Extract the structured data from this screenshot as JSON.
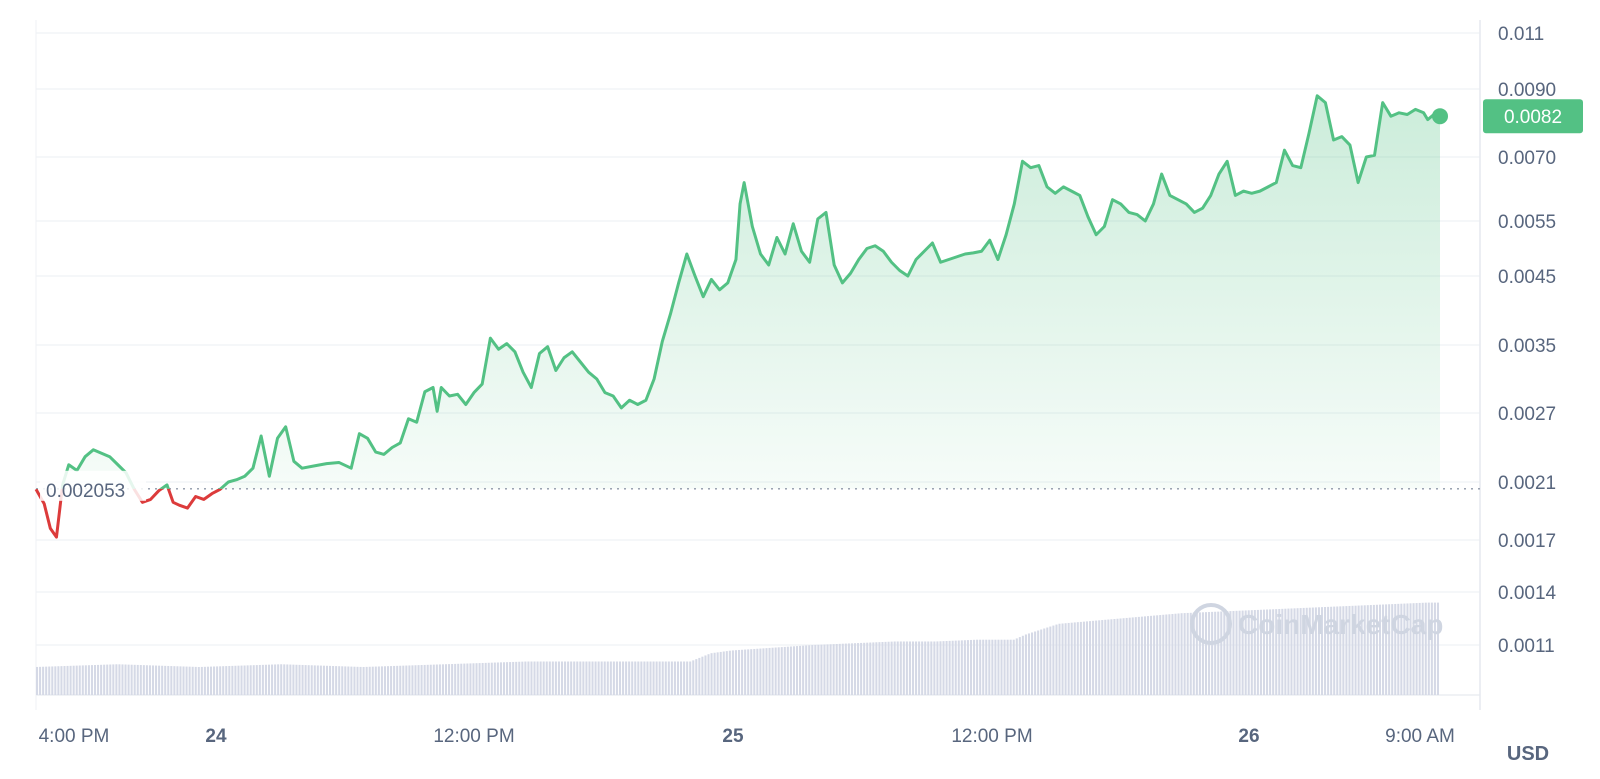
{
  "chart_data": {
    "type": "line",
    "currency_unit": "USD",
    "watermark": "CoinMarketCap",
    "reference_value": 0.002053,
    "reference_label": "0.002053",
    "current_value": 0.0082,
    "current_label": "0.0082",
    "y_ticks": [
      "0.011",
      "0.0090",
      "0.0070",
      "0.0055",
      "0.0045",
      "0.0035",
      "0.0027",
      "0.0021",
      "0.0017",
      "0.0014",
      "0.0011"
    ],
    "x_ticks": [
      {
        "label": "4:00 PM",
        "bold": false
      },
      {
        "label": "24",
        "bold": true
      },
      {
        "label": "12:00 PM",
        "bold": false
      },
      {
        "label": "25",
        "bold": true
      },
      {
        "label": "12:00 PM",
        "bold": false
      },
      {
        "label": "26",
        "bold": true
      },
      {
        "label": "9:00 AM",
        "bold": false
      }
    ],
    "colors": {
      "up": "#53c184",
      "down": "#dc3b3b",
      "volume": "#d5d9e6",
      "grid": "#eff2f5"
    },
    "price_series": [
      [
        0.0,
        0.00205
      ],
      [
        0.2,
        0.00195
      ],
      [
        0.35,
        0.00178
      ],
      [
        0.5,
        0.00172
      ],
      [
        0.65,
        0.00208
      ],
      [
        0.8,
        0.00225
      ],
      [
        1.0,
        0.0022
      ],
      [
        1.2,
        0.00232
      ],
      [
        1.4,
        0.00238
      ],
      [
        1.6,
        0.00235
      ],
      [
        1.8,
        0.00232
      ],
      [
        2.0,
        0.00225
      ],
      [
        2.2,
        0.00218
      ],
      [
        2.4,
        0.00205
      ],
      [
        2.6,
        0.00196
      ],
      [
        2.8,
        0.00198
      ],
      [
        3.0,
        0.00204
      ],
      [
        3.2,
        0.00208
      ],
      [
        3.35,
        0.00196
      ],
      [
        3.5,
        0.00194
      ],
      [
        3.7,
        0.00192
      ],
      [
        3.9,
        0.002
      ],
      [
        4.1,
        0.00198
      ],
      [
        4.3,
        0.00202
      ],
      [
        4.5,
        0.00205
      ],
      [
        4.7,
        0.0021
      ],
      [
        4.9,
        0.00212
      ],
      [
        5.1,
        0.00215
      ],
      [
        5.3,
        0.00222
      ],
      [
        5.5,
        0.0025
      ],
      [
        5.7,
        0.00215
      ],
      [
        5.9,
        0.00248
      ],
      [
        6.1,
        0.00258
      ],
      [
        6.3,
        0.00228
      ],
      [
        6.5,
        0.00222
      ],
      [
        6.8,
        0.00224
      ],
      [
        7.1,
        0.00226
      ],
      [
        7.4,
        0.00227
      ],
      [
        7.7,
        0.00222
      ],
      [
        7.9,
        0.00252
      ],
      [
        8.1,
        0.00248
      ],
      [
        8.3,
        0.00236
      ],
      [
        8.5,
        0.00234
      ],
      [
        8.7,
        0.0024
      ],
      [
        8.9,
        0.00244
      ],
      [
        9.1,
        0.00265
      ],
      [
        9.3,
        0.00262
      ],
      [
        9.5,
        0.00295
      ],
      [
        9.7,
        0.003
      ],
      [
        9.8,
        0.00272
      ],
      [
        9.9,
        0.003
      ],
      [
        10.1,
        0.0029
      ],
      [
        10.3,
        0.00292
      ],
      [
        10.5,
        0.0028
      ],
      [
        10.7,
        0.00294
      ],
      [
        10.9,
        0.00304
      ],
      [
        11.1,
        0.0036
      ],
      [
        11.3,
        0.00345
      ],
      [
        11.5,
        0.00352
      ],
      [
        11.7,
        0.00342
      ],
      [
        11.9,
        0.00318
      ],
      [
        12.1,
        0.003
      ],
      [
        12.3,
        0.0034
      ],
      [
        12.5,
        0.00348
      ],
      [
        12.7,
        0.0032
      ],
      [
        12.9,
        0.00335
      ],
      [
        13.1,
        0.00342
      ],
      [
        13.3,
        0.0033
      ],
      [
        13.5,
        0.00318
      ],
      [
        13.7,
        0.0031
      ],
      [
        13.9,
        0.00294
      ],
      [
        14.1,
        0.0029
      ],
      [
        14.3,
        0.00276
      ],
      [
        14.5,
        0.00285
      ],
      [
        14.7,
        0.0028
      ],
      [
        14.9,
        0.00285
      ],
      [
        15.1,
        0.0031
      ],
      [
        15.3,
        0.00355
      ],
      [
        15.5,
        0.00395
      ],
      [
        15.7,
        0.0044
      ],
      [
        15.9,
        0.0049
      ],
      [
        16.1,
        0.0045
      ],
      [
        16.3,
        0.0042
      ],
      [
        16.5,
        0.00445
      ],
      [
        16.7,
        0.0043
      ],
      [
        16.9,
        0.0044
      ],
      [
        17.1,
        0.0048
      ],
      [
        17.2,
        0.0059
      ],
      [
        17.3,
        0.0064
      ],
      [
        17.5,
        0.0054
      ],
      [
        17.7,
        0.0049
      ],
      [
        17.9,
        0.0047
      ],
      [
        18.1,
        0.0052
      ],
      [
        18.3,
        0.0049
      ],
      [
        18.5,
        0.00545
      ],
      [
        18.7,
        0.00495
      ],
      [
        18.9,
        0.00475
      ],
      [
        19.1,
        0.00555
      ],
      [
        19.3,
        0.0057
      ],
      [
        19.5,
        0.0047
      ],
      [
        19.7,
        0.0044
      ],
      [
        19.9,
        0.00455
      ],
      [
        20.1,
        0.0048
      ],
      [
        20.3,
        0.005
      ],
      [
        20.5,
        0.00505
      ],
      [
        20.7,
        0.00495
      ],
      [
        20.9,
        0.00475
      ],
      [
        21.1,
        0.0046
      ],
      [
        21.3,
        0.0045
      ],
      [
        21.5,
        0.0048
      ],
      [
        21.7,
        0.00495
      ],
      [
        21.9,
        0.0051
      ],
      [
        22.1,
        0.00475
      ],
      [
        22.3,
        0.0048
      ],
      [
        22.5,
        0.00485
      ],
      [
        22.7,
        0.0049
      ],
      [
        22.9,
        0.00492
      ],
      [
        23.1,
        0.00495
      ],
      [
        23.3,
        0.00515
      ],
      [
        23.5,
        0.0048
      ],
      [
        23.7,
        0.00525
      ],
      [
        23.9,
        0.0059
      ],
      [
        24.1,
        0.0069
      ],
      [
        24.3,
        0.00675
      ],
      [
        24.5,
        0.0068
      ],
      [
        24.7,
        0.0063
      ],
      [
        24.9,
        0.00615
      ],
      [
        25.1,
        0.0063
      ],
      [
        25.3,
        0.0062
      ],
      [
        25.5,
        0.0061
      ],
      [
        25.7,
        0.0056
      ],
      [
        25.9,
        0.00525
      ],
      [
        26.1,
        0.0054
      ],
      [
        26.3,
        0.006
      ],
      [
        26.5,
        0.0059
      ],
      [
        26.7,
        0.0057
      ],
      [
        26.9,
        0.00565
      ],
      [
        27.1,
        0.0055
      ],
      [
        27.3,
        0.0059
      ],
      [
        27.5,
        0.0066
      ],
      [
        27.7,
        0.0061
      ],
      [
        27.9,
        0.006
      ],
      [
        28.1,
        0.0059
      ],
      [
        28.3,
        0.0057
      ],
      [
        28.5,
        0.0058
      ],
      [
        28.7,
        0.0061
      ],
      [
        28.9,
        0.0066
      ],
      [
        29.1,
        0.0069
      ],
      [
        29.3,
        0.0061
      ],
      [
        29.5,
        0.0062
      ],
      [
        29.7,
        0.00615
      ],
      [
        29.9,
        0.0062
      ],
      [
        30.1,
        0.0063
      ],
      [
        30.3,
        0.0064
      ],
      [
        30.5,
        0.0072
      ],
      [
        30.7,
        0.0068
      ],
      [
        30.9,
        0.00675
      ],
      [
        31.1,
        0.0077
      ],
      [
        31.3,
        0.0088
      ],
      [
        31.5,
        0.0086
      ],
      [
        31.7,
        0.0075
      ],
      [
        31.9,
        0.0076
      ],
      [
        32.1,
        0.00735
      ],
      [
        32.3,
        0.0064
      ],
      [
        32.5,
        0.007
      ],
      [
        32.7,
        0.00705
      ],
      [
        32.9,
        0.0086
      ],
      [
        33.1,
        0.0082
      ],
      [
        33.3,
        0.0083
      ],
      [
        33.5,
        0.00825
      ],
      [
        33.7,
        0.0084
      ],
      [
        33.9,
        0.0083
      ],
      [
        34.0,
        0.0081
      ],
      [
        34.2,
        0.0083
      ],
      [
        34.3,
        0.0082
      ]
    ],
    "volume_series": [
      [
        0.0,
        0.00102
      ],
      [
        2.0,
        0.00103
      ],
      [
        4.0,
        0.00102
      ],
      [
        6.0,
        0.00103
      ],
      [
        8.0,
        0.00102
      ],
      [
        10.0,
        0.00103
      ],
      [
        12.0,
        0.00104
      ],
      [
        14.0,
        0.00104
      ],
      [
        16.0,
        0.00104
      ],
      [
        16.5,
        0.00107
      ],
      [
        17.0,
        0.00108
      ],
      [
        18.0,
        0.00109
      ],
      [
        19.0,
        0.0011
      ],
      [
        20.0,
        0.00111
      ],
      [
        21.0,
        0.00112
      ],
      [
        22.0,
        0.00112
      ],
      [
        23.0,
        0.00113
      ],
      [
        23.9,
        0.00113
      ],
      [
        24.2,
        0.00116
      ],
      [
        25.0,
        0.00122
      ],
      [
        26.0,
        0.00124
      ],
      [
        27.0,
        0.00126
      ],
      [
        28.0,
        0.00128
      ],
      [
        29.0,
        0.00129
      ],
      [
        30.0,
        0.0013
      ],
      [
        31.0,
        0.00131
      ],
      [
        32.0,
        0.00132
      ],
      [
        33.0,
        0.00133
      ],
      [
        34.0,
        0.00134
      ],
      [
        34.3,
        0.00134
      ]
    ]
  }
}
